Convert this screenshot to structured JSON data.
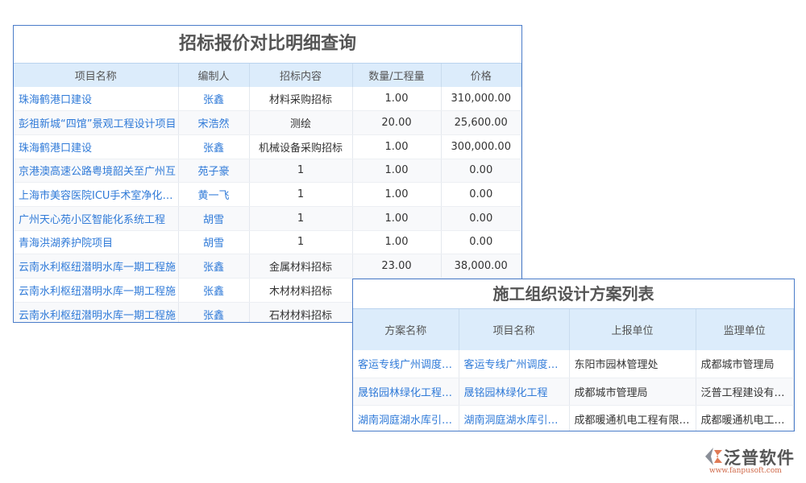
{
  "table1": {
    "title": "招标报价对比明细查询",
    "headers": [
      "项目名称",
      "编制人",
      "招标内容",
      "数量/工程量",
      "价格"
    ],
    "rows": [
      [
        "珠海鹤港口建设",
        "张鑫",
        "材料采购招标",
        "1.00",
        "310,000.00"
      ],
      [
        "彭祖新城“四馆”景观工程设计项目",
        "宋浩然",
        "测绘",
        "20.00",
        "25,600.00"
      ],
      [
        "珠海鹤港口建设",
        "张鑫",
        "机械设备采购招标",
        "1.00",
        "300,000.00"
      ],
      [
        "京港澳高速公路粤境韶关至广州互",
        "苑子豪",
        "1",
        "1.00",
        "0.00"
      ],
      [
        "上海市美容医院ICU手术室净化工程",
        "黄一飞",
        "1",
        "1.00",
        "0.00"
      ],
      [
        "广州天心苑小区智能化系统工程",
        "胡雪",
        "1",
        "1.00",
        "0.00"
      ],
      [
        "青海洪湖养护院项目",
        "胡雪",
        "1",
        "1.00",
        "0.00"
      ],
      [
        "云南水利枢纽潜明水库一期工程施",
        "张鑫",
        "金属材料招标",
        "23.00",
        "38,000.00"
      ],
      [
        "云南水利枢纽潜明水库一期工程施",
        "张鑫",
        "木材材料招标",
        "",
        ""
      ],
      [
        "云南水利枢纽潜明水库一期工程施",
        "张鑫",
        "石材材料招标",
        "",
        ""
      ]
    ]
  },
  "table2": {
    "title": "施工组织设计方案列表",
    "headers": [
      "方案名称",
      "项目名称",
      "上报单位",
      "监理单位"
    ],
    "rows": [
      [
        "客运专线广州调度…",
        "客运专线广州调度…",
        "东阳市园林管理处",
        "成都城市管理局"
      ],
      [
        "晟铭园林绿化工程…",
        "晟铭园林绿化工程",
        "成都城市管理局",
        "泛普工程建设有限…"
      ],
      [
        "湖南洞庭湖水库引…",
        "湖南洞庭湖水库引…",
        "成都暖通机电工程有限…",
        "成都暖通机电工程…"
      ]
    ]
  },
  "logo": {
    "name": "泛普软件",
    "url": "www.fanpusoft.com"
  }
}
